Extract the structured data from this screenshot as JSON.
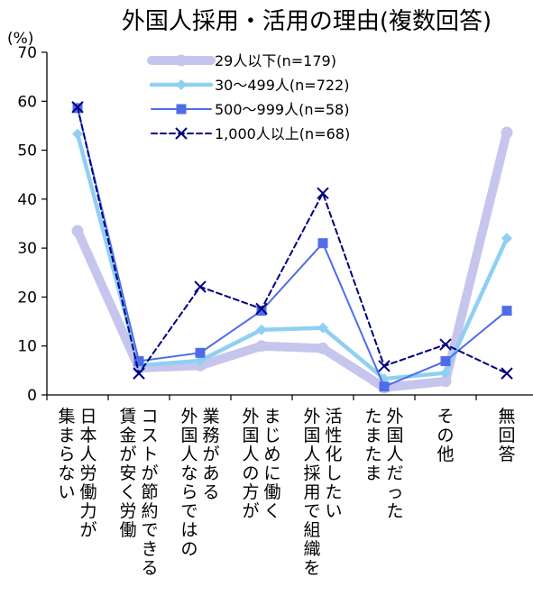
{
  "chart_data": {
    "type": "line",
    "title": "外国人採用・活用の理由(複数回答)",
    "y_unit": "(%)",
    "ylim": [
      0,
      70
    ],
    "yticks": [
      0,
      10,
      20,
      30,
      40,
      50,
      60,
      70
    ],
    "grid": false,
    "legend_position": "top-center",
    "categories": [
      [
        "日本人労働力が",
        "集まらない"
      ],
      [
        "コストが節約できる",
        "賃金が安く労働"
      ],
      [
        "業務がある",
        "外国人ならではの"
      ],
      [
        "まじめに働く",
        "外国人の方が"
      ],
      [
        "活性化したい",
        "外国人採用で組織を"
      ],
      [
        "外国人だった",
        "たまたま"
      ],
      [
        "その他"
      ],
      [
        "無回答"
      ]
    ],
    "series": [
      {
        "name": "29人以下(n=179)",
        "values": [
          33.5,
          5.5,
          6.0,
          10.0,
          9.5,
          1.5,
          2.8,
          53.6
        ],
        "color": "#c5c5ed"
      },
      {
        "name": "30～499人(n=722)",
        "values": [
          53.3,
          6.0,
          7.0,
          13.3,
          13.7,
          3.3,
          4.5,
          32.0
        ],
        "color": "#8fd0f2"
      },
      {
        "name": "500～999人(n=58)",
        "values": [
          58.6,
          6.9,
          8.6,
          17.2,
          31.0,
          1.7,
          6.9,
          17.2
        ],
        "color": "#4f6ce8"
      },
      {
        "name": "1,000人以上(n=68)",
        "values": [
          58.8,
          4.4,
          22.1,
          17.6,
          41.2,
          5.9,
          10.3,
          4.4
        ],
        "color": "#000080"
      }
    ]
  }
}
